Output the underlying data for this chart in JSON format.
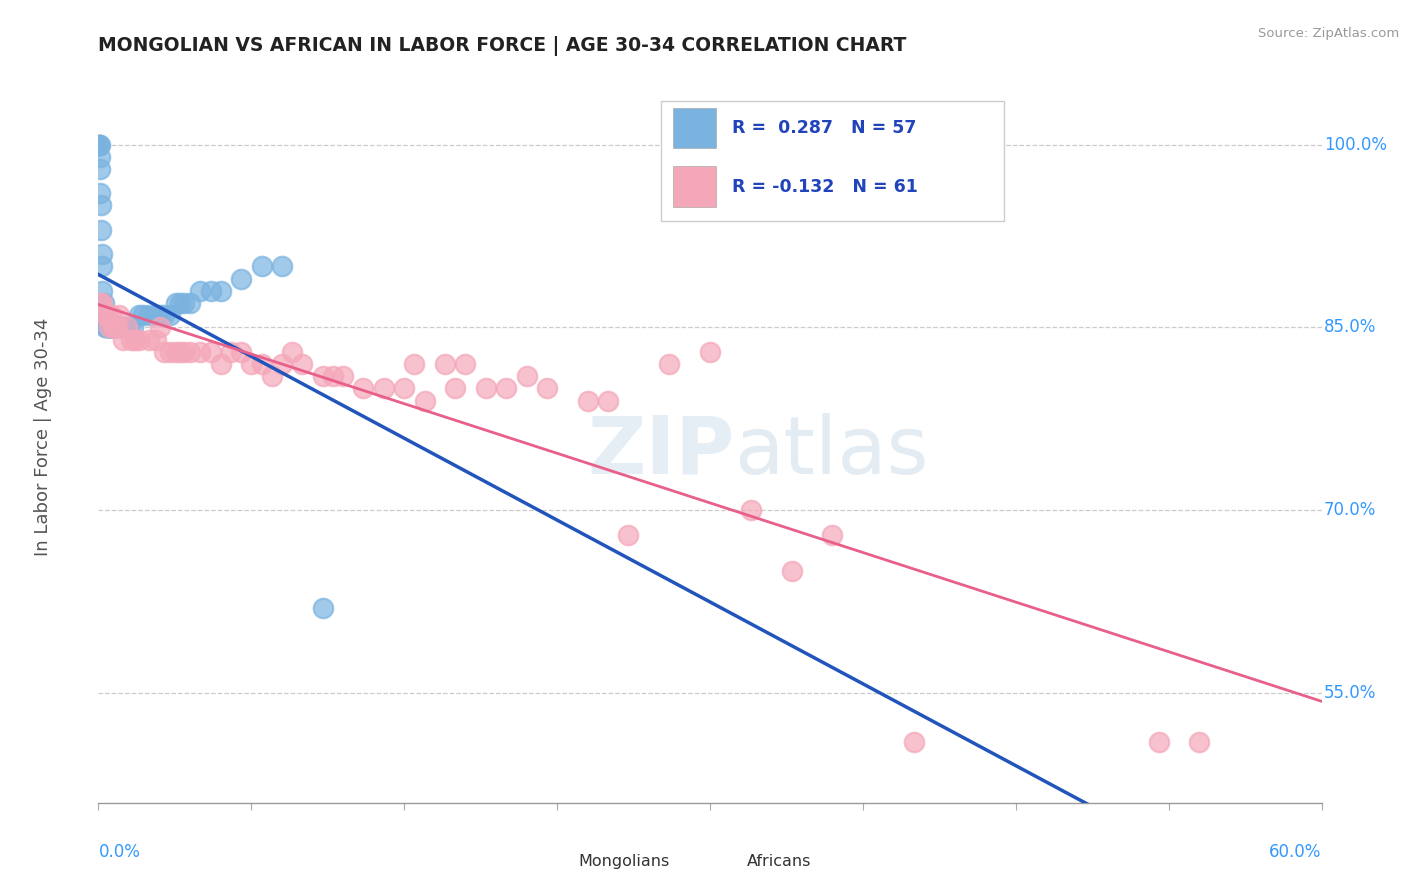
{
  "title": "MONGOLIAN VS AFRICAN IN LABOR FORCE | AGE 30-34 CORRELATION CHART",
  "source": "Source: ZipAtlas.com",
  "ylabel": "In Labor Force | Age 30-34",
  "xmin": 0.0,
  "xmax": 0.6,
  "ymin": 0.46,
  "ymax": 1.06,
  "yticks": [
    0.55,
    0.7,
    0.85,
    1.0
  ],
  "ytick_labels": [
    "55.0%",
    "70.0%",
    "85.0%",
    "100.0%"
  ],
  "mongolian_R": 0.287,
  "mongolian_N": 57,
  "african_R": -0.132,
  "african_N": 61,
  "mongolian_color": "#7ab3e0",
  "african_color": "#f4a7b9",
  "mongolian_line_color": "#2255bb",
  "african_line_color": "#e8608a",
  "background_color": "#ffffff",
  "grid_color": "#cccccc",
  "watermark_zip": "ZIP",
  "watermark_atlas": "atlas",
  "mongolian_x": [
    0.0005,
    0.0005,
    0.0005,
    0.001,
    0.001,
    0.001,
    0.001,
    0.0015,
    0.0015,
    0.002,
    0.002,
    0.002,
    0.0025,
    0.0025,
    0.003,
    0.003,
    0.003,
    0.003,
    0.004,
    0.004,
    0.004,
    0.005,
    0.005,
    0.005,
    0.006,
    0.006,
    0.006,
    0.007,
    0.007,
    0.008,
    0.008,
    0.009,
    0.009,
    0.01,
    0.01,
    0.012,
    0.013,
    0.015,
    0.017,
    0.02,
    0.022,
    0.025,
    0.028,
    0.03,
    0.032,
    0.035,
    0.038,
    0.04,
    0.042,
    0.045,
    0.05,
    0.055,
    0.06,
    0.07,
    0.08,
    0.09,
    0.11
  ],
  "mongolian_y": [
    1.0,
    1.0,
    1.0,
    1.0,
    0.99,
    0.98,
    0.96,
    0.95,
    0.93,
    0.91,
    0.9,
    0.88,
    0.87,
    0.86,
    0.86,
    0.86,
    0.86,
    0.85,
    0.85,
    0.85,
    0.85,
    0.85,
    0.85,
    0.85,
    0.85,
    0.85,
    0.85,
    0.85,
    0.85,
    0.85,
    0.85,
    0.85,
    0.85,
    0.85,
    0.85,
    0.85,
    0.85,
    0.85,
    0.85,
    0.86,
    0.86,
    0.86,
    0.86,
    0.86,
    0.86,
    0.86,
    0.87,
    0.87,
    0.87,
    0.87,
    0.88,
    0.88,
    0.88,
    0.89,
    0.9,
    0.9,
    0.62
  ],
  "african_x": [
    0.001,
    0.002,
    0.003,
    0.004,
    0.005,
    0.006,
    0.007,
    0.008,
    0.009,
    0.01,
    0.012,
    0.014,
    0.016,
    0.018,
    0.02,
    0.025,
    0.028,
    0.03,
    0.032,
    0.035,
    0.038,
    0.04,
    0.042,
    0.045,
    0.05,
    0.055,
    0.06,
    0.065,
    0.07,
    0.075,
    0.08,
    0.085,
    0.09,
    0.095,
    0.1,
    0.11,
    0.115,
    0.12,
    0.13,
    0.14,
    0.15,
    0.155,
    0.16,
    0.17,
    0.175,
    0.18,
    0.19,
    0.2,
    0.21,
    0.22,
    0.24,
    0.25,
    0.26,
    0.28,
    0.3,
    0.32,
    0.34,
    0.36,
    0.4,
    0.52,
    0.54
  ],
  "african_y": [
    0.87,
    0.87,
    0.86,
    0.86,
    0.85,
    0.86,
    0.85,
    0.85,
    0.85,
    0.86,
    0.84,
    0.85,
    0.84,
    0.84,
    0.84,
    0.84,
    0.84,
    0.85,
    0.83,
    0.83,
    0.83,
    0.83,
    0.83,
    0.83,
    0.83,
    0.83,
    0.82,
    0.83,
    0.83,
    0.82,
    0.82,
    0.81,
    0.82,
    0.83,
    0.82,
    0.81,
    0.81,
    0.81,
    0.8,
    0.8,
    0.8,
    0.82,
    0.79,
    0.82,
    0.8,
    0.82,
    0.8,
    0.8,
    0.81,
    0.8,
    0.79,
    0.79,
    0.68,
    0.82,
    0.83,
    0.7,
    0.65,
    0.68,
    0.51,
    0.51,
    0.51
  ]
}
